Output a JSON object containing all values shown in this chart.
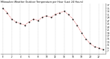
{
  "title": "Milwaukee Weather Outdoor Temperature per Hour (Last 24 Hours)",
  "hours": [
    0,
    1,
    2,
    3,
    4,
    5,
    6,
    7,
    8,
    9,
    10,
    11,
    12,
    13,
    14,
    15,
    16,
    17,
    18,
    19,
    20,
    21,
    22,
    23
  ],
  "temps": [
    35,
    32,
    28,
    26,
    25,
    24,
    26,
    28,
    27,
    29,
    30,
    29,
    31,
    32,
    33,
    31,
    28,
    24,
    19,
    15,
    12,
    10,
    9,
    8
  ],
  "line_color": "#cc0000",
  "marker_color": "#000000",
  "bg_color": "#ffffff",
  "grid_color": "#888888",
  "title_color": "#000000",
  "ylim": [
    5,
    38
  ],
  "xlim": [
    -0.5,
    23.5
  ],
  "title_fontsize": 2.5,
  "tick_fontsize": 2.2,
  "ytick_fontsize": 2.2,
  "yticks": [
    7,
    9,
    11,
    13,
    15,
    17,
    19,
    21,
    23,
    25,
    27,
    29,
    31,
    33,
    35,
    37
  ],
  "xticks": [
    0,
    2,
    4,
    6,
    8,
    10,
    12,
    14,
    16,
    18,
    20,
    22
  ],
  "grid_xticks": [
    0,
    2,
    4,
    6,
    8,
    10,
    12,
    14,
    16,
    18,
    20,
    22,
    23
  ]
}
